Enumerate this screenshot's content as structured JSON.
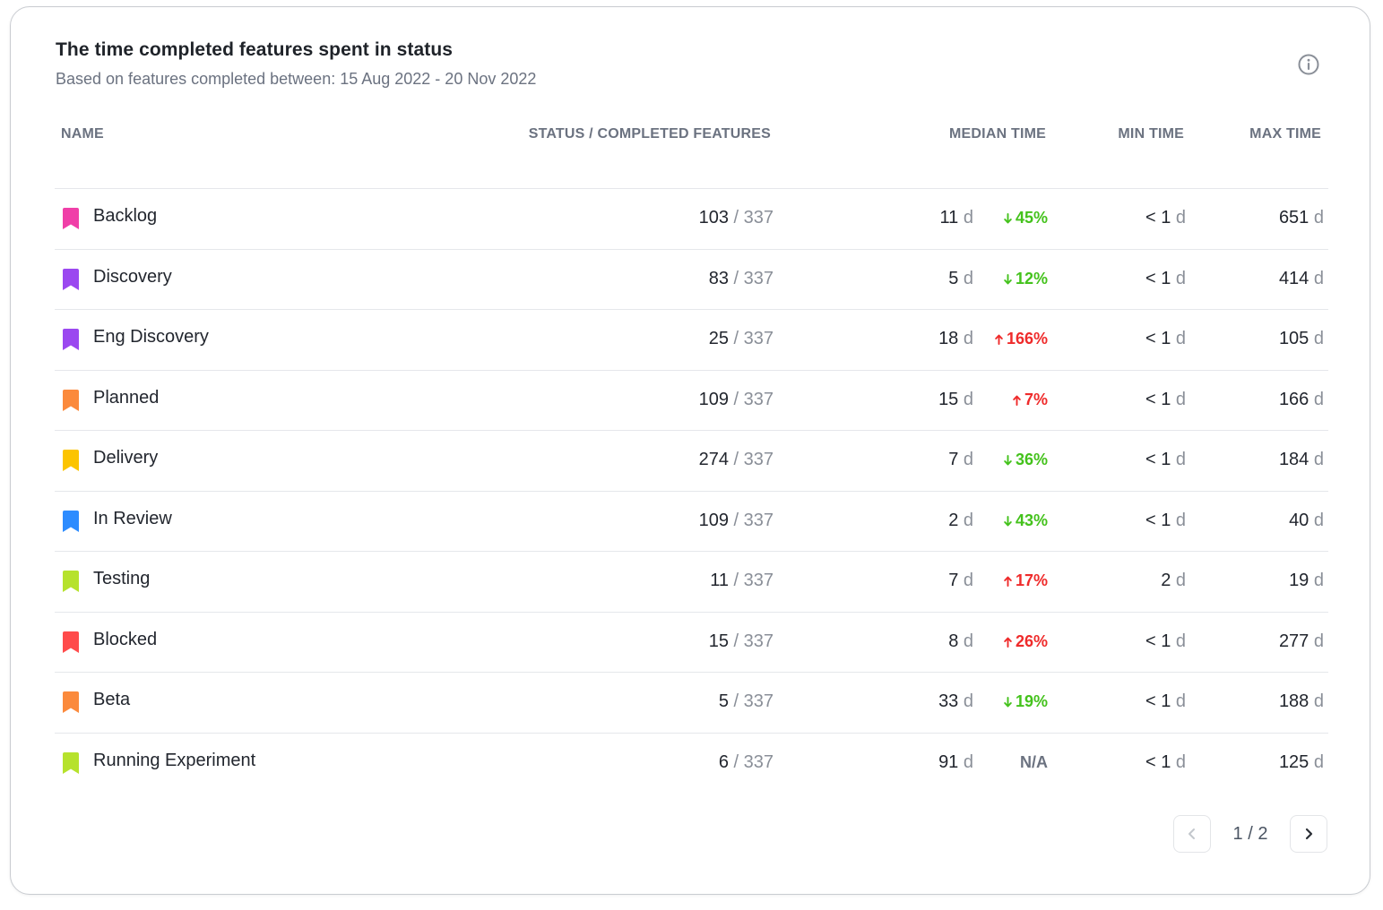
{
  "header": {
    "title": "The time completed features spent in status",
    "subtitle": "Based on features completed between: 15 Aug 2022 - 20 Nov 2022",
    "info_icon": "info-circle-icon"
  },
  "columns": {
    "name": "NAME",
    "status": "STATUS / COMPLETED FEATURES",
    "median": "MEDIAN TIME",
    "min": "MIN TIME",
    "max": "MAX TIME"
  },
  "colors": {
    "increase": "#ef2b2b",
    "decrease": "#44c21c"
  },
  "rows": [
    {
      "name": "Backlog",
      "color": "#f03fa8",
      "count": "103",
      "total": "/ 337",
      "median": "11",
      "median_unit": "d",
      "change_dir": "down",
      "change": "45%",
      "min_prefix": "< ",
      "min": "1",
      "min_unit": "d",
      "max": "651",
      "max_unit": "d"
    },
    {
      "name": "Discovery",
      "color": "#9b48f0",
      "count": "83",
      "total": "/ 337",
      "median": "5",
      "median_unit": "d",
      "change_dir": "down",
      "change": "12%",
      "min_prefix": "< ",
      "min": "1",
      "min_unit": "d",
      "max": "414",
      "max_unit": "d"
    },
    {
      "name": "Eng Discovery",
      "color": "#9b48f0",
      "count": "25",
      "total": "/ 337",
      "median": "18",
      "median_unit": "d",
      "change_dir": "up",
      "change": "166%",
      "min_prefix": "< ",
      "min": "1",
      "min_unit": "d",
      "max": "105",
      "max_unit": "d"
    },
    {
      "name": "Planned",
      "color": "#fb8a3c",
      "count": "109",
      "total": "/ 337",
      "median": "15",
      "median_unit": "d",
      "change_dir": "up",
      "change": "7%",
      "min_prefix": "< ",
      "min": "1",
      "min_unit": "d",
      "max": "166",
      "max_unit": "d"
    },
    {
      "name": "Delivery",
      "color": "#fcc400",
      "count": "274",
      "total": "/ 337",
      "median": "7",
      "median_unit": "d",
      "change_dir": "down",
      "change": "36%",
      "min_prefix": "< ",
      "min": "1",
      "min_unit": "d",
      "max": "184",
      "max_unit": "d"
    },
    {
      "name": "In Review",
      "color": "#2d8cff",
      "count": "109",
      "total": "/ 337",
      "median": "2",
      "median_unit": "d",
      "change_dir": "down",
      "change": "43%",
      "min_prefix": "< ",
      "min": "1",
      "min_unit": "d",
      "max": "40",
      "max_unit": "d"
    },
    {
      "name": "Testing",
      "color": "#b6e22c",
      "count": "11",
      "total": "/ 337",
      "median": "7",
      "median_unit": "d",
      "change_dir": "up",
      "change": "17%",
      "min_prefix": "",
      "min": "2",
      "min_unit": "d",
      "max": "19",
      "max_unit": "d"
    },
    {
      "name": "Blocked",
      "color": "#ff4b4b",
      "count": "15",
      "total": "/ 337",
      "median": "8",
      "median_unit": "d",
      "change_dir": "up",
      "change": "26%",
      "min_prefix": "< ",
      "min": "1",
      "min_unit": "d",
      "max": "277",
      "max_unit": "d"
    },
    {
      "name": "Beta",
      "color": "#fb8a3c",
      "count": "5",
      "total": "/ 337",
      "median": "33",
      "median_unit": "d",
      "change_dir": "down",
      "change": "19%",
      "min_prefix": "< ",
      "min": "1",
      "min_unit": "d",
      "max": "188",
      "max_unit": "d"
    },
    {
      "name": "Running Experiment",
      "color": "#b6e22c",
      "count": "6",
      "total": "/ 337",
      "median": "91",
      "median_unit": "d",
      "change_dir": "none",
      "change": "N/A",
      "min_prefix": "< ",
      "min": "1",
      "min_unit": "d",
      "max": "125",
      "max_unit": "d"
    }
  ],
  "pagination": {
    "current": "1",
    "separator": " / ",
    "total": "2",
    "prev_icon": "chevron-left-icon",
    "next_icon": "chevron-right-icon"
  }
}
